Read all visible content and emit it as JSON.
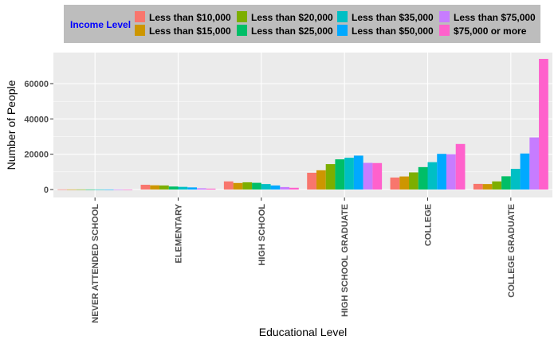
{
  "chart_data": {
    "type": "bar",
    "xlabel": "Educational Level",
    "ylabel": "Number of People",
    "ylim": [
      -3000,
      77000
    ],
    "yticks": [
      0,
      20000,
      40000,
      60000
    ],
    "ytick_labels": [
      "0",
      "20000",
      "40000",
      "60000"
    ],
    "grid": true,
    "legend": {
      "title": "Income Level",
      "title_color": "#0000ff",
      "placement": "top"
    },
    "categories": [
      "NEVER ATTENDED SCHOOL",
      "ELEMENTARY",
      "HIGH SCHOOL",
      "HIGH SCHOOL GRADUATE",
      "COLLEGE",
      "COLLEGE GRADUATE"
    ],
    "series": [
      {
        "name": "Less than $10,000",
        "color": "#F8766D",
        "values": [
          80,
          2700,
          4600,
          9500,
          6800,
          3200
        ]
      },
      {
        "name": "Less than $15,000",
        "color": "#CD9600",
        "values": [
          60,
          2400,
          3700,
          10900,
          7400,
          3100
        ]
      },
      {
        "name": "Less than $20,000",
        "color": "#7CAE00",
        "values": [
          60,
          2300,
          4100,
          14400,
          9700,
          4600
        ]
      },
      {
        "name": "Less than $25,000",
        "color": "#00BE67",
        "values": [
          50,
          1700,
          3800,
          17100,
          12700,
          7500
        ]
      },
      {
        "name": "Less than $35,000",
        "color": "#00BFC4",
        "values": [
          50,
          1500,
          3100,
          18000,
          15500,
          11700
        ]
      },
      {
        "name": "Less than $50,000",
        "color": "#00A9FF",
        "values": [
          40,
          1200,
          2300,
          19200,
          20200,
          20400
        ]
      },
      {
        "name": "Less than $75,000",
        "color": "#C77CFF",
        "values": [
          30,
          700,
          1400,
          15100,
          20000,
          29500
        ]
      },
      {
        "name": "$75,000 or more",
        "color": "#FF61CC",
        "values": [
          20,
          500,
          1000,
          15000,
          25800,
          74000
        ]
      }
    ]
  }
}
